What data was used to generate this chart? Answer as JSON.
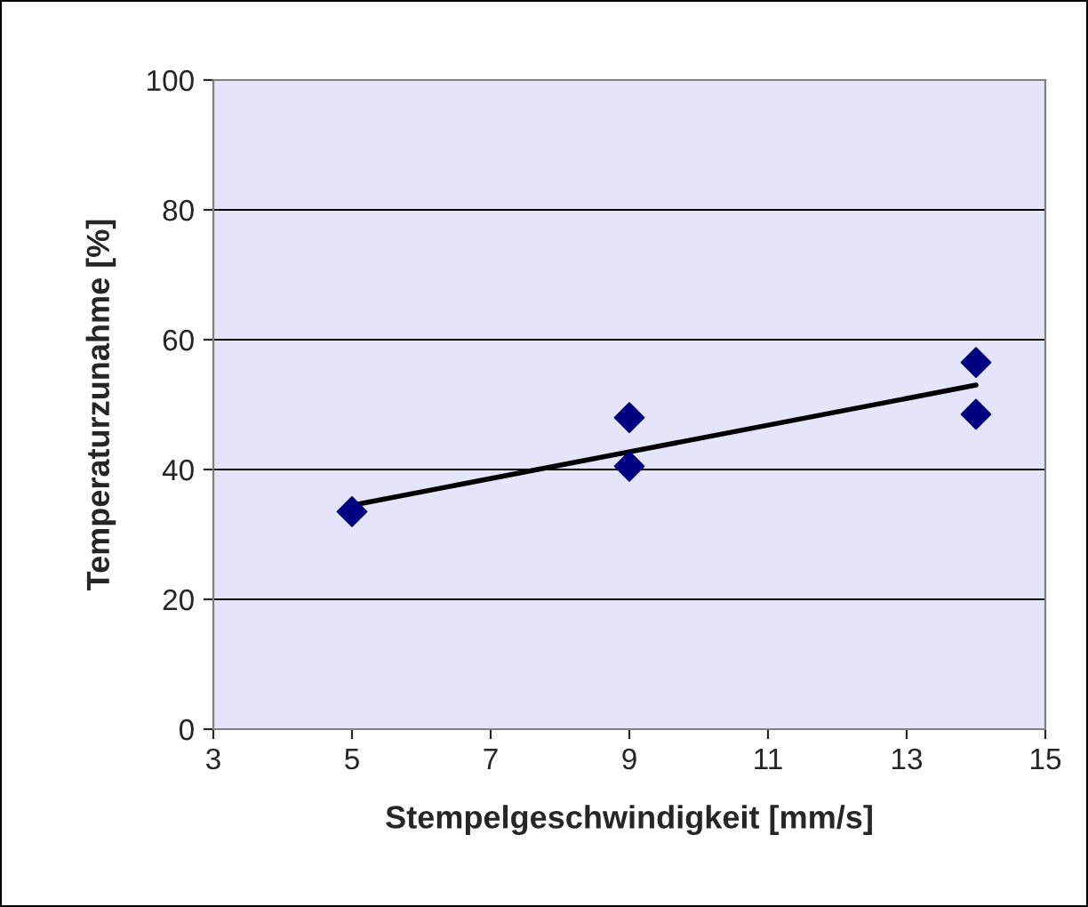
{
  "chart_data": {
    "type": "scatter",
    "xlabel": "Stempelgeschwindigkeit [mm/s]",
    "ylabel": "Temperaturzunahme [%]",
    "xlim": [
      3,
      15
    ],
    "xticks": [
      3,
      5,
      7,
      9,
      11,
      13,
      15
    ],
    "ylim": [
      0,
      100
    ],
    "yticks": [
      0,
      20,
      40,
      60,
      80,
      100
    ],
    "grid": "y",
    "marker": "diamond",
    "series": [
      {
        "color": "#000080",
        "x": [
          5,
          9,
          9,
          14,
          14
        ],
        "values": [
          33.5,
          48,
          40.5,
          56.5,
          48.5
        ]
      },
      {
        "type": "line",
        "color": "#000000",
        "marker": "none",
        "x": [
          5,
          14
        ],
        "values": [
          34.5,
          53
        ]
      }
    ]
  }
}
